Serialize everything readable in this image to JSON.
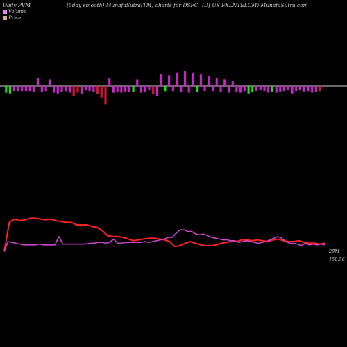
{
  "header": {
    "left": "Daily PVM",
    "center_left": "(5day smooth) MunafaSutra(TM) charts for DSFC",
    "center_right": "(DJ US FXLNTELCM) MunafaSutra.com"
  },
  "legend": [
    {
      "label": "Volume",
      "color": "#ff66ff"
    },
    {
      "label": "Price",
      "color": "#ff9944"
    }
  ],
  "end_labels": {
    "volume": "29M",
    "price": "150.56"
  },
  "colors": {
    "background": "#000000",
    "baseline": "#cfcfcf",
    "bar_pos": "#cc22cc",
    "bar_neg": "#dd1133",
    "bar_green": "#22dd22",
    "price_line": "#ff2222",
    "volume_line": "#cc44cc"
  },
  "chart_data": [
    {
      "type": "bar",
      "name": "pvm_bars",
      "baseline": 0,
      "values": [
        -8,
        -9,
        -6,
        -6,
        -6,
        -6,
        -6,
        -7,
        10,
        -7,
        -6,
        8,
        -8,
        -9,
        -7,
        -6,
        -8,
        -12,
        -8,
        -9,
        -5,
        -6,
        -7,
        -10,
        -14,
        -22,
        9,
        -8,
        -7,
        -8,
        -7,
        -7,
        -7,
        8,
        -8,
        -7,
        -5,
        -10,
        -12,
        15,
        -6,
        13,
        -6,
        16,
        -7,
        18,
        -8,
        16,
        -7,
        14,
        -6,
        12,
        -6,
        10,
        -7,
        8,
        -8,
        6,
        -7,
        -8,
        -6,
        -9,
        -7,
        -6,
        -5,
        -6,
        -8,
        -7,
        -8,
        -7,
        -6,
        -5,
        -9,
        -6,
        -5,
        -7,
        -6,
        -8,
        -7,
        -6
      ],
      "colors": [
        "g",
        "g",
        "m",
        "m",
        "m",
        "m",
        "m",
        "m",
        "m",
        "m",
        "m",
        "m",
        "m",
        "m",
        "m",
        "m",
        "m",
        "r",
        "r",
        "m",
        "m",
        "m",
        "m",
        "r",
        "r",
        "r",
        "m",
        "m",
        "m",
        "m",
        "m",
        "m",
        "g",
        "m",
        "m",
        "m",
        "m",
        "r",
        "m",
        "m",
        "g",
        "m",
        "m",
        "m",
        "m",
        "m",
        "m",
        "m",
        "g",
        "m",
        "m",
        "m",
        "m",
        "m",
        "m",
        "m",
        "m",
        "m",
        "m",
        "m",
        "m",
        "g",
        "g",
        "m",
        "m",
        "m",
        "m",
        "g",
        "m",
        "m",
        "m",
        "m",
        "m",
        "m",
        "m",
        "m",
        "m",
        "m",
        "m",
        "r"
      ],
      "ylim": [
        -25,
        25
      ]
    },
    {
      "type": "line",
      "series": [
        {
          "name": "Price",
          "values": [
            23,
            58,
            62,
            60,
            61,
            63,
            63,
            62,
            61,
            62,
            60,
            59,
            58,
            58,
            55,
            55,
            55,
            53,
            52,
            48,
            42,
            41,
            41,
            40,
            38,
            36,
            37,
            38,
            39,
            39,
            38,
            37,
            35,
            29,
            30,
            33,
            35,
            33,
            31,
            30,
            30,
            31,
            33,
            34,
            35,
            35,
            37,
            37,
            36,
            37,
            36,
            35,
            37,
            38,
            36,
            35,
            35,
            36,
            34,
            33,
            33,
            32,
            33
          ]
        },
        {
          "name": "Volume",
          "values": [
            23,
            35,
            34,
            33,
            32,
            31,
            31,
            31,
            31,
            32,
            31,
            31,
            31,
            31,
            41,
            32,
            32,
            32,
            32,
            32,
            32,
            32,
            33,
            33,
            34,
            34,
            33,
            34,
            38,
            33,
            33,
            34,
            34,
            34,
            34,
            34,
            35,
            34,
            35,
            36,
            37,
            38,
            40,
            40,
            45,
            49,
            49,
            47,
            47,
            44,
            43,
            44,
            42,
            40,
            39,
            38,
            37,
            37,
            36,
            36,
            34,
            35,
            36,
            35,
            34,
            33,
            34,
            35,
            37,
            39,
            41,
            39,
            35,
            33,
            33,
            32,
            30,
            33,
            31,
            32,
            31,
            32,
            31
          ]
        }
      ],
      "ylim": [
        0,
        75
      ]
    }
  ]
}
